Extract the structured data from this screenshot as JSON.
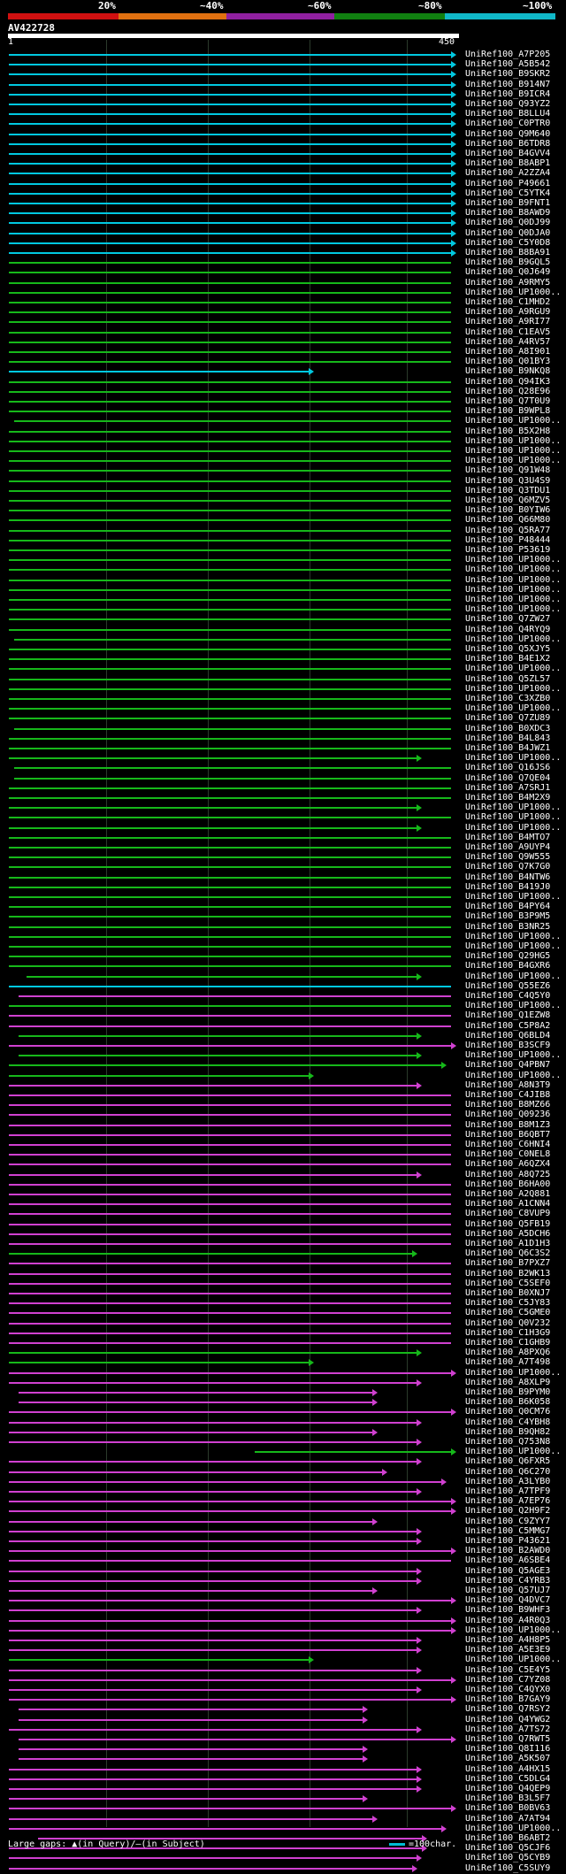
{
  "legend": {
    "labels": [
      "20%",
      "~40%",
      "~60%",
      "~80%",
      "~100%"
    ],
    "colors": [
      "#d01010",
      "#e07010",
      "#9020a0",
      "#108010",
      "#10b8c8"
    ]
  },
  "title": "AV422728",
  "axis": {
    "start": "1",
    "end": "450"
  },
  "footer": {
    "text": "Large gaps: ▲(in Query)/—(in Subject)",
    "scale": "=100char."
  },
  "rows": [
    {
      "id": "UniRef100_A7P205",
      "c": "c",
      "s": 0,
      "e": 450,
      "a": 1
    },
    {
      "id": "UniRef100_A5B542",
      "c": "c",
      "s": 0,
      "e": 450,
      "a": 1
    },
    {
      "id": "UniRef100_B9SKR2",
      "c": "c",
      "s": 0,
      "e": 450,
      "a": 1
    },
    {
      "id": "UniRef100_B914N7",
      "c": "c",
      "s": 0,
      "e": 450,
      "a": 1
    },
    {
      "id": "UniRef100_B9ICR4",
      "c": "c",
      "s": 0,
      "e": 450,
      "a": 1
    },
    {
      "id": "UniRef100_Q93YZ2",
      "c": "c",
      "s": 0,
      "e": 450,
      "a": 1
    },
    {
      "id": "UniRef100_B8LLU4",
      "c": "c",
      "s": 0,
      "e": 450,
      "a": 1
    },
    {
      "id": "UniRef100_C0PTR0",
      "c": "c",
      "s": 0,
      "e": 450,
      "a": 1
    },
    {
      "id": "UniRef100_Q9M640",
      "c": "c",
      "s": 0,
      "e": 450,
      "a": 1
    },
    {
      "id": "UniRef100_B6TDR8",
      "c": "c",
      "s": 0,
      "e": 450,
      "a": 1
    },
    {
      "id": "UniRef100_B4GVV4",
      "c": "c",
      "s": 0,
      "e": 450,
      "a": 1
    },
    {
      "id": "UniRef100_B8ABP1",
      "c": "c",
      "s": 0,
      "e": 450,
      "a": 1
    },
    {
      "id": "UniRef100_A2ZZA4",
      "c": "c",
      "s": 0,
      "e": 450,
      "a": 1
    },
    {
      "id": "UniRef100_P49661",
      "c": "c",
      "s": 0,
      "e": 450,
      "a": 1
    },
    {
      "id": "UniRef100_C5YTK4",
      "c": "c",
      "s": 0,
      "e": 450,
      "a": 1
    },
    {
      "id": "UniRef100_B9FNT1",
      "c": "c",
      "s": 0,
      "e": 450,
      "a": 1
    },
    {
      "id": "UniRef100_B8AWD9",
      "c": "c",
      "s": 0,
      "e": 450,
      "a": 1
    },
    {
      "id": "UniRef100_Q0DJ99",
      "c": "c",
      "s": 0,
      "e": 450,
      "a": 1
    },
    {
      "id": "UniRef100_Q0DJA0",
      "c": "c",
      "s": 0,
      "e": 450,
      "a": 1
    },
    {
      "id": "UniRef100_C5Y0D8",
      "c": "c",
      "s": 0,
      "e": 450,
      "a": 1
    },
    {
      "id": "UniRef100_B8BA91",
      "c": "c",
      "s": 0,
      "e": 450,
      "a": 1
    },
    {
      "id": "UniRef100_B9GQL5",
      "c": "g",
      "s": 0,
      "e": 450,
      "a": 0
    },
    {
      "id": "UniRef100_Q0J649",
      "c": "g",
      "s": 0,
      "e": 450,
      "a": 0
    },
    {
      "id": "UniRef100_A9RMY5",
      "c": "g",
      "s": 0,
      "e": 450,
      "a": 0
    },
    {
      "id": "UniRef100_UP1000..",
      "c": "g",
      "s": 0,
      "e": 450,
      "a": 0
    },
    {
      "id": "UniRef100_C1MHD2",
      "c": "g",
      "s": 0,
      "e": 450,
      "a": 0
    },
    {
      "id": "UniRef100_A9RGU9",
      "c": "g",
      "s": 0,
      "e": 450,
      "a": 0
    },
    {
      "id": "UniRef100_A9RI77",
      "c": "g",
      "s": 0,
      "e": 450,
      "a": 0
    },
    {
      "id": "UniRef100_C1EAV5",
      "c": "g",
      "s": 0,
      "e": 450,
      "a": 0
    },
    {
      "id": "UniRef100_A4RV57",
      "c": "g",
      "s": 0,
      "e": 450,
      "a": 0
    },
    {
      "id": "UniRef100_A8I901",
      "c": "g",
      "s": 0,
      "e": 450,
      "a": 0
    },
    {
      "id": "UniRef100_Q01BY3",
      "c": "g",
      "s": 0,
      "e": 450,
      "a": 0
    },
    {
      "id": "UniRef100_B9NKQ8",
      "c": "c",
      "s": 0,
      "e": 305,
      "a": 1
    },
    {
      "id": "UniRef100_Q94IK3",
      "c": "g",
      "s": 0,
      "e": 450,
      "a": 0
    },
    {
      "id": "UniRef100_Q28E96",
      "c": "g",
      "s": 0,
      "e": 450,
      "a": 0
    },
    {
      "id": "UniRef100_Q7T0U9",
      "c": "g",
      "s": 0,
      "e": 450,
      "a": 0
    },
    {
      "id": "UniRef100_B9WPL8",
      "c": "g",
      "s": 0,
      "e": 450,
      "a": 0
    },
    {
      "id": "UniRef100_UP1000..",
      "c": "g",
      "s": 5,
      "e": 450,
      "a": 0
    },
    {
      "id": "UniRef100_B5X2H8",
      "c": "g",
      "s": 0,
      "e": 450,
      "a": 0
    },
    {
      "id": "UniRef100_UP1000..",
      "c": "g",
      "s": 0,
      "e": 450,
      "a": 0
    },
    {
      "id": "UniRef100_UP1000..",
      "c": "g",
      "s": 0,
      "e": 450,
      "a": 0
    },
    {
      "id": "UniRef100_UP1000..",
      "c": "g",
      "s": 0,
      "e": 450,
      "a": 0
    },
    {
      "id": "UniRef100_Q91W48",
      "c": "g",
      "s": 0,
      "e": 450,
      "a": 0
    },
    {
      "id": "UniRef100_Q3U4S9",
      "c": "g",
      "s": 0,
      "e": 450,
      "a": 0
    },
    {
      "id": "UniRef100_Q3TDU1",
      "c": "g",
      "s": 0,
      "e": 450,
      "a": 0
    },
    {
      "id": "UniRef100_Q6MZV5",
      "c": "g",
      "s": 0,
      "e": 450,
      "a": 0
    },
    {
      "id": "UniRef100_B0YIW6",
      "c": "g",
      "s": 0,
      "e": 450,
      "a": 0
    },
    {
      "id": "UniRef100_Q66M80",
      "c": "g",
      "s": 0,
      "e": 450,
      "a": 0
    },
    {
      "id": "UniRef100_Q5RA77",
      "c": "g",
      "s": 0,
      "e": 450,
      "a": 0
    },
    {
      "id": "UniRef100_P48444",
      "c": "g",
      "s": 0,
      "e": 450,
      "a": 0
    },
    {
      "id": "UniRef100_P53619",
      "c": "g",
      "s": 0,
      "e": 450,
      "a": 0
    },
    {
      "id": "UniRef100_UP1000..",
      "c": "g",
      "s": 0,
      "e": 450,
      "a": 0
    },
    {
      "id": "UniRef100_UP1000..",
      "c": "g",
      "s": 0,
      "e": 450,
      "a": 0
    },
    {
      "id": "UniRef100_UP1000..",
      "c": "g",
      "s": 0,
      "e": 450,
      "a": 0
    },
    {
      "id": "UniRef100_UP1000..",
      "c": "g",
      "s": 0,
      "e": 450,
      "a": 0
    },
    {
      "id": "UniRef100_UP1000..",
      "c": "g",
      "s": 0,
      "e": 450,
      "a": 0
    },
    {
      "id": "UniRef100_UP1000..",
      "c": "g",
      "s": 0,
      "e": 450,
      "a": 0
    },
    {
      "id": "UniRef100_Q7ZW27",
      "c": "g",
      "s": 0,
      "e": 450,
      "a": 0
    },
    {
      "id": "UniRef100_Q4RYQ9",
      "c": "g",
      "s": 0,
      "e": 450,
      "a": 0
    },
    {
      "id": "UniRef100_UP1000..",
      "c": "g",
      "s": 5,
      "e": 450,
      "a": 0
    },
    {
      "id": "UniRef100_Q5XJY5",
      "c": "g",
      "s": 0,
      "e": 450,
      "a": 0
    },
    {
      "id": "UniRef100_B4E1X2",
      "c": "g",
      "s": 0,
      "e": 450,
      "a": 0
    },
    {
      "id": "UniRef100_UP1000..",
      "c": "g",
      "s": 0,
      "e": 450,
      "a": 0
    },
    {
      "id": "UniRef100_Q5ZL57",
      "c": "g",
      "s": 0,
      "e": 450,
      "a": 0
    },
    {
      "id": "UniRef100_UP1000..",
      "c": "g",
      "s": 0,
      "e": 450,
      "a": 0
    },
    {
      "id": "UniRef100_C3XZB0",
      "c": "g",
      "s": 0,
      "e": 450,
      "a": 0
    },
    {
      "id": "UniRef100_UP1000..",
      "c": "g",
      "s": 0,
      "e": 450,
      "a": 0
    },
    {
      "id": "UniRef100_Q7ZU89",
      "c": "g",
      "s": 0,
      "e": 450,
      "a": 0
    },
    {
      "id": "UniRef100_B0XDC3",
      "c": "g",
      "s": 5,
      "e": 450,
      "a": 0
    },
    {
      "id": "UniRef100_B4L843",
      "c": "g",
      "s": 0,
      "e": 450,
      "a": 0
    },
    {
      "id": "UniRef100_B4JWZ1",
      "c": "g",
      "s": 0,
      "e": 450,
      "a": 0
    },
    {
      "id": "UniRef100_UP1000..",
      "c": "g",
      "s": 0,
      "e": 415,
      "a": 1
    },
    {
      "id": "UniRef100_Q16JS6",
      "c": "g",
      "s": 5,
      "e": 450,
      "a": 0
    },
    {
      "id": "UniRef100_Q7QE04",
      "c": "g",
      "s": 5,
      "e": 450,
      "a": 0
    },
    {
      "id": "UniRef100_A7SRJ1",
      "c": "g",
      "s": 0,
      "e": 450,
      "a": 0
    },
    {
      "id": "UniRef100_B4M2X9",
      "c": "g",
      "s": 0,
      "e": 450,
      "a": 0
    },
    {
      "id": "UniRef100_UP1000..",
      "c": "g",
      "s": 0,
      "e": 415,
      "a": 1
    },
    {
      "id": "UniRef100_UP1000..",
      "c": "g",
      "s": 0,
      "e": 450,
      "a": 0
    },
    {
      "id": "UniRef100_UP1000..",
      "c": "g",
      "s": 0,
      "e": 415,
      "a": 1
    },
    {
      "id": "UniRef100_B4MTO7",
      "c": "g",
      "s": 0,
      "e": 450,
      "a": 0
    },
    {
      "id": "UniRef100_A9UYP4",
      "c": "g",
      "s": 0,
      "e": 450,
      "a": 0
    },
    {
      "id": "UniRef100_Q9W555",
      "c": "g",
      "s": 0,
      "e": 450,
      "a": 0
    },
    {
      "id": "UniRef100_Q7K7G0",
      "c": "g",
      "s": 0,
      "e": 450,
      "a": 0
    },
    {
      "id": "UniRef100_B4NTW6",
      "c": "g",
      "s": 0,
      "e": 450,
      "a": 0
    },
    {
      "id": "UniRef100_B419J0",
      "c": "g",
      "s": 0,
      "e": 450,
      "a": 0
    },
    {
      "id": "UniRef100_UP1000..",
      "c": "g",
      "s": 0,
      "e": 450,
      "a": 0
    },
    {
      "id": "UniRef100_B4PY64",
      "c": "g",
      "s": 0,
      "e": 450,
      "a": 0
    },
    {
      "id": "UniRef100_B3P9M5",
      "c": "g",
      "s": 0,
      "e": 450,
      "a": 0
    },
    {
      "id": "UniRef100_B3NR25",
      "c": "g",
      "s": 0,
      "e": 450,
      "a": 0
    },
    {
      "id": "UniRef100_UP1000..",
      "c": "g",
      "s": 0,
      "e": 450,
      "a": 0
    },
    {
      "id": "UniRef100_UP1000..",
      "c": "g",
      "s": 0,
      "e": 450,
      "a": 0
    },
    {
      "id": "UniRef100_Q29HG5",
      "c": "g",
      "s": 0,
      "e": 450,
      "a": 0
    },
    {
      "id": "UniRef100_B4GXR6",
      "c": "g",
      "s": 0,
      "e": 450,
      "a": 0
    },
    {
      "id": "UniRef100_UP1000..",
      "c": "g",
      "s": 18,
      "e": 415,
      "a": 1
    },
    {
      "id": "UniRef100_Q55EZ6",
      "c": "c",
      "s": 0,
      "e": 450,
      "a": 0
    },
    {
      "id": "UniRef100_C4Q5Y0",
      "c": "p",
      "s": 10,
      "e": 450,
      "a": 0
    },
    {
      "id": "UniRef100_UP1000..",
      "c": "g",
      "s": 0,
      "e": 450,
      "a": 0
    },
    {
      "id": "UniRef100_Q1EZW8",
      "c": "p",
      "s": 0,
      "e": 450,
      "a": 0
    },
    {
      "id": "UniRef100_C5P8A2",
      "c": "p",
      "s": 0,
      "e": 450,
      "a": 0
    },
    {
      "id": "UniRef100_Q6BLD4",
      "c": "g",
      "s": 10,
      "e": 415,
      "a": 1
    },
    {
      "id": "UniRef100_B3SCF9",
      "c": "p",
      "s": 0,
      "e": 450,
      "a": 1
    },
    {
      "id": "UniRef100_UP1000..",
      "c": "g",
      "s": 10,
      "e": 415,
      "a": 1
    },
    {
      "id": "UniRef100_Q4PBN7",
      "c": "g",
      "s": 0,
      "e": 440,
      "a": 1
    },
    {
      "id": "UniRef100_UP1000..",
      "c": "g",
      "s": 0,
      "e": 305,
      "a": 1
    },
    {
      "id": "UniRef100_A8N3T9",
      "c": "p",
      "s": 0,
      "e": 415,
      "a": 1
    },
    {
      "id": "UniRef100_C4JIB8",
      "c": "p",
      "s": 0,
      "e": 450,
      "a": 0
    },
    {
      "id": "UniRef100_B8MZ66",
      "c": "p",
      "s": 0,
      "e": 450,
      "a": 0
    },
    {
      "id": "UniRef100_Q09236",
      "c": "p",
      "s": 0,
      "e": 450,
      "a": 0
    },
    {
      "id": "UniRef100_B8M1Z3",
      "c": "p",
      "s": 0,
      "e": 450,
      "a": 0
    },
    {
      "id": "UniRef100_B6QBT7",
      "c": "p",
      "s": 0,
      "e": 450,
      "a": 0
    },
    {
      "id": "UniRef100_C6HNI4",
      "c": "p",
      "s": 0,
      "e": 450,
      "a": 0
    },
    {
      "id": "UniRef100_C0NEL8",
      "c": "p",
      "s": 0,
      "e": 450,
      "a": 0
    },
    {
      "id": "UniRef100_A6QZX4",
      "c": "p",
      "s": 0,
      "e": 450,
      "a": 0
    },
    {
      "id": "UniRef100_A8Q725",
      "c": "p",
      "s": 0,
      "e": 415,
      "a": 1
    },
    {
      "id": "UniRef100_B6HA00",
      "c": "p",
      "s": 0,
      "e": 450,
      "a": 0
    },
    {
      "id": "UniRef100_A2Q881",
      "c": "p",
      "s": 0,
      "e": 450,
      "a": 0
    },
    {
      "id": "UniRef100_A1CNN4",
      "c": "p",
      "s": 0,
      "e": 450,
      "a": 0
    },
    {
      "id": "UniRef100_C8VUP9",
      "c": "p",
      "s": 0,
      "e": 450,
      "a": 0
    },
    {
      "id": "UniRef100_Q5FB19",
      "c": "p",
      "s": 0,
      "e": 450,
      "a": 0
    },
    {
      "id": "UniRef100_A5DCH6",
      "c": "p",
      "s": 0,
      "e": 450,
      "a": 0
    },
    {
      "id": "UniRef100_A1D1H3",
      "c": "p",
      "s": 0,
      "e": 450,
      "a": 0
    },
    {
      "id": "UniRef100_Q6C3S2",
      "c": "g",
      "s": 0,
      "e": 410,
      "a": 1
    },
    {
      "id": "UniRef100_B7PXZ7",
      "c": "p",
      "s": 0,
      "e": 450,
      "a": 0
    },
    {
      "id": "UniRef100_B2WK13",
      "c": "p",
      "s": 0,
      "e": 450,
      "a": 0
    },
    {
      "id": "UniRef100_C5SEF0",
      "c": "p",
      "s": 0,
      "e": 450,
      "a": 0
    },
    {
      "id": "UniRef100_B0XNJ7",
      "c": "p",
      "s": 0,
      "e": 450,
      "a": 0
    },
    {
      "id": "UniRef100_C5JY83",
      "c": "p",
      "s": 0,
      "e": 450,
      "a": 0
    },
    {
      "id": "UniRef100_C5GME0",
      "c": "p",
      "s": 0,
      "e": 450,
      "a": 0
    },
    {
      "id": "UniRef100_Q0V232",
      "c": "p",
      "s": 0,
      "e": 450,
      "a": 0
    },
    {
      "id": "UniRef100_C1H3G9",
      "c": "p",
      "s": 0,
      "e": 450,
      "a": 0
    },
    {
      "id": "UniRef100_C1GHB9",
      "c": "p",
      "s": 0,
      "e": 450,
      "a": 0
    },
    {
      "id": "UniRef100_A8PXQ6",
      "c": "g",
      "s": 0,
      "e": 415,
      "a": 1
    },
    {
      "id": "UniRef100_A7T498",
      "c": "g",
      "s": 0,
      "e": 305,
      "a": 1
    },
    {
      "id": "UniRef100_UP1000..",
      "c": "p",
      "s": 0,
      "e": 450,
      "a": 1
    },
    {
      "id": "UniRef100_A8XLP9",
      "c": "p",
      "s": 0,
      "e": 415,
      "a": 1
    },
    {
      "id": "UniRef100_B9PYM0",
      "c": "p",
      "s": 10,
      "e": 370,
      "a": 1
    },
    {
      "id": "UniRef100_B6K058",
      "c": "p",
      "s": 10,
      "e": 370,
      "a": 1
    },
    {
      "id": "UniRef100_Q0CM76",
      "c": "p",
      "s": 0,
      "e": 450,
      "a": 1
    },
    {
      "id": "UniRef100_C4YBH8",
      "c": "p",
      "s": 0,
      "e": 415,
      "a": 1
    },
    {
      "id": "UniRef100_B9QH82",
      "c": "p",
      "s": 0,
      "e": 370,
      "a": 1
    },
    {
      "id": "UniRef100_Q753N8",
      "c": "p",
      "s": 0,
      "e": 415,
      "a": 1
    },
    {
      "id": "UniRef100_UP1000..",
      "c": "g",
      "s": 250,
      "e": 450,
      "a": 1
    },
    {
      "id": "UniRef100_Q6FXR5",
      "c": "p",
      "s": 0,
      "e": 415,
      "a": 1
    },
    {
      "id": "UniRef100_Q6C270",
      "c": "p",
      "s": 0,
      "e": 380,
      "a": 1
    },
    {
      "id": "UniRef100_A3LYB0",
      "c": "p",
      "s": 0,
      "e": 440,
      "a": 1
    },
    {
      "id": "UniRef100_A7TPF9",
      "c": "p",
      "s": 0,
      "e": 415,
      "a": 1
    },
    {
      "id": "UniRef100_A7EP76",
      "c": "p",
      "s": 0,
      "e": 450,
      "a": 1
    },
    {
      "id": "UniRef100_Q2H9F2",
      "c": "p",
      "s": 0,
      "e": 450,
      "a": 1
    },
    {
      "id": "UniRef100_C9ZYY7",
      "c": "p",
      "s": 0,
      "e": 370,
      "a": 1
    },
    {
      "id": "UniRef100_C5MMG7",
      "c": "p",
      "s": 0,
      "e": 415,
      "a": 1
    },
    {
      "id": "UniRef100_P43621",
      "c": "p",
      "s": 0,
      "e": 415,
      "a": 1
    },
    {
      "id": "UniRef100_B2AWD0",
      "c": "p",
      "s": 0,
      "e": 450,
      "a": 1
    },
    {
      "id": "UniRef100_A6SBE4",
      "c": "p",
      "s": 0,
      "e": 450,
      "a": 0
    },
    {
      "id": "UniRef100_Q5AGE3",
      "c": "p",
      "s": 0,
      "e": 415,
      "a": 1
    },
    {
      "id": "UniRef100_C4YRB3",
      "c": "p",
      "s": 0,
      "e": 415,
      "a": 1
    },
    {
      "id": "UniRef100_Q57UJ7",
      "c": "p",
      "s": 0,
      "e": 370,
      "a": 1
    },
    {
      "id": "UniRef100_Q4DVC7",
      "c": "p",
      "s": 0,
      "e": 450,
      "a": 1
    },
    {
      "id": "UniRef100_B9WHF3",
      "c": "p",
      "s": 0,
      "e": 415,
      "a": 1
    },
    {
      "id": "UniRef100_A4R0Q3",
      "c": "p",
      "s": 0,
      "e": 450,
      "a": 1
    },
    {
      "id": "UniRef100_UP1000..",
      "c": "p",
      "s": 0,
      "e": 450,
      "a": 1
    },
    {
      "id": "UniRef100_A4H8P5",
      "c": "p",
      "s": 0,
      "e": 415,
      "a": 1
    },
    {
      "id": "UniRef100_A5E3E9",
      "c": "p",
      "s": 0,
      "e": 415,
      "a": 1
    },
    {
      "id": "UniRef100_UP1000..",
      "c": "g",
      "s": 0,
      "e": 305,
      "a": 1
    },
    {
      "id": "UniRef100_C5E4Y5",
      "c": "p",
      "s": 0,
      "e": 415,
      "a": 1
    },
    {
      "id": "UniRef100_C7YZ08",
      "c": "p",
      "s": 0,
      "e": 450,
      "a": 1
    },
    {
      "id": "UniRef100_C4QYX0",
      "c": "p",
      "s": 0,
      "e": 415,
      "a": 1
    },
    {
      "id": "UniRef100_B7GAY9",
      "c": "p",
      "s": 0,
      "e": 450,
      "a": 1
    },
    {
      "id": "UniRef100_Q7RSY2",
      "c": "p",
      "s": 10,
      "e": 360,
      "a": 1
    },
    {
      "id": "UniRef100_Q4YWG2",
      "c": "p",
      "s": 10,
      "e": 360,
      "a": 1
    },
    {
      "id": "UniRef100_A7TS72",
      "c": "p",
      "s": 0,
      "e": 415,
      "a": 1
    },
    {
      "id": "UniRef100_Q7RWT5",
      "c": "p",
      "s": 10,
      "e": 450,
      "a": 1
    },
    {
      "id": "UniRef100_Q8I116",
      "c": "p",
      "s": 10,
      "e": 360,
      "a": 1
    },
    {
      "id": "UniRef100_A5K507",
      "c": "p",
      "s": 10,
      "e": 360,
      "a": 1
    },
    {
      "id": "UniRef100_A4HX15",
      "c": "p",
      "s": 0,
      "e": 415,
      "a": 1
    },
    {
      "id": "UniRef100_C5DLG4",
      "c": "p",
      "s": 0,
      "e": 415,
      "a": 1
    },
    {
      "id": "UniRef100_Q4QEP9",
      "c": "p",
      "s": 0,
      "e": 415,
      "a": 1
    },
    {
      "id": "UniRef100_B3L5F7",
      "c": "p",
      "s": 0,
      "e": 360,
      "a": 1
    },
    {
      "id": "UniRef100_B0BV63",
      "c": "p",
      "s": 0,
      "e": 450,
      "a": 1
    },
    {
      "id": "UniRef100_A7AT94",
      "c": "p",
      "s": 0,
      "e": 370,
      "a": 1
    },
    {
      "id": "UniRef100_UP1000..",
      "c": "p",
      "s": 0,
      "e": 440,
      "a": 1
    },
    {
      "id": "UniRef100_B6ABT2",
      "c": "p",
      "s": 30,
      "e": 420,
      "a": 1
    },
    {
      "id": "UniRef100_Q5CJF6",
      "c": "p",
      "s": 0,
      "e": 420,
      "a": 1
    },
    {
      "id": "UniRef100_Q5CYB9",
      "c": "p",
      "s": 0,
      "e": 415,
      "a": 1
    },
    {
      "id": "UniRef100_C5SUY9",
      "c": "p",
      "s": 0,
      "e": 410,
      "a": 1
    }
  ]
}
